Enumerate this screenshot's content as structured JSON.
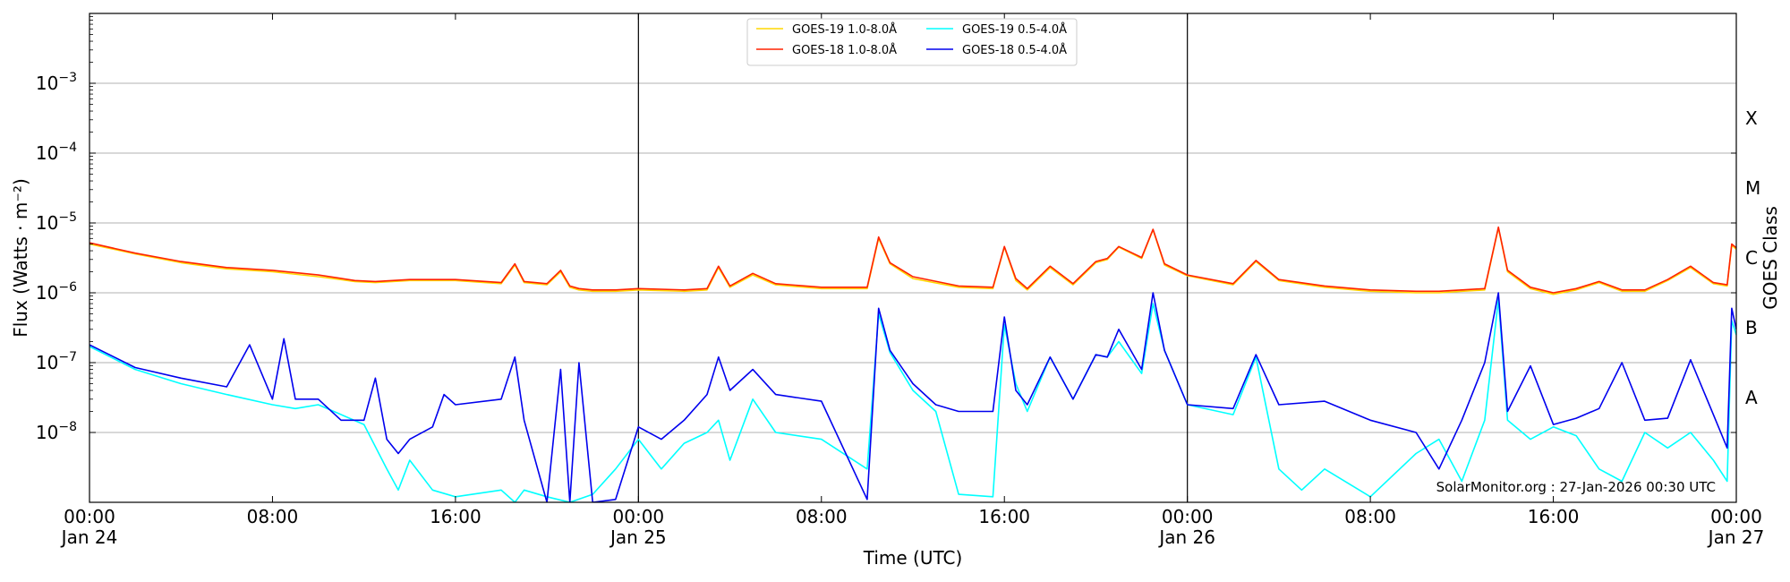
{
  "chart_data": {
    "type": "line",
    "xlabel": "Time (UTC)",
    "ylabel": "Flux (Watts · m⁻²)",
    "y2label": "GOES Class",
    "credit": "SolarMonitor.org : 27-Jan-2026 00:30 UTC",
    "x_range_hours": [
      0,
      72
    ],
    "ylim": [
      1e-09,
      0.01
    ],
    "yscale": "log",
    "grid": "horizontal",
    "legend_position": "top-center",
    "x_ticks": [
      {
        "h": 0,
        "label": "00:00",
        "date": "Jan 24"
      },
      {
        "h": 8,
        "label": "08:00",
        "date": ""
      },
      {
        "h": 16,
        "label": "16:00",
        "date": ""
      },
      {
        "h": 24,
        "label": "00:00",
        "date": "Jan 25"
      },
      {
        "h": 32,
        "label": "08:00",
        "date": ""
      },
      {
        "h": 40,
        "label": "16:00",
        "date": ""
      },
      {
        "h": 48,
        "label": "00:00",
        "date": "Jan 26"
      },
      {
        "h": 56,
        "label": "08:00",
        "date": ""
      },
      {
        "h": 64,
        "label": "16:00",
        "date": ""
      },
      {
        "h": 72,
        "label": "00:00",
        "date": "Jan 27"
      }
    ],
    "y_ticks": [
      {
        "exp": -3,
        "label": "10",
        "sup": "−3"
      },
      {
        "exp": -4,
        "label": "10",
        "sup": "−4"
      },
      {
        "exp": -5,
        "label": "10",
        "sup": "−5"
      },
      {
        "exp": -6,
        "label": "10",
        "sup": "−6"
      },
      {
        "exp": -7,
        "label": "10",
        "sup": "−7"
      },
      {
        "exp": -8,
        "label": "10",
        "sup": "−8"
      }
    ],
    "goes_classes": [
      {
        "label": "X",
        "exp": -3.5
      },
      {
        "label": "M",
        "exp": -4.5
      },
      {
        "label": "C",
        "exp": -5.5
      },
      {
        "label": "B",
        "exp": -6.5
      },
      {
        "label": "A",
        "exp": -7.5
      }
    ],
    "day_boundaries_hours": [
      24,
      48
    ],
    "series": [
      {
        "name": "GOES-19 1.0-8.0Å",
        "color": "#ffd700",
        "x": [
          0,
          2,
          4,
          6,
          8,
          10,
          11.6,
          12.5,
          14,
          16,
          18,
          18.6,
          19,
          20,
          20.6,
          21,
          21.4,
          22,
          23,
          24,
          26,
          27,
          27.5,
          28,
          29,
          30,
          32,
          34,
          34.5,
          35,
          36,
          38,
          39.5,
          40,
          40.5,
          41,
          42,
          43,
          44,
          44.5,
          45,
          46,
          46.5,
          47,
          48,
          50,
          51,
          52,
          54,
          56,
          58,
          59,
          60,
          61,
          61.6,
          62,
          63,
          64,
          65,
          66,
          67,
          68,
          69,
          70,
          71,
          71.6,
          71.8,
          72
        ],
        "values": [
          5e-06,
          3.6e-06,
          2.7e-06,
          2.2e-06,
          2e-06,
          1.7e-06,
          1.45e-06,
          1.4e-06,
          1.5e-06,
          1.5e-06,
          1.35e-06,
          2.5e-06,
          1.4e-06,
          1.3e-06,
          2e-06,
          1.2e-06,
          1.1e-06,
          1.05e-06,
          1.05e-06,
          1.1e-06,
          1.05e-06,
          1.1e-06,
          2.3e-06,
          1.2e-06,
          1.8e-06,
          1.3e-06,
          1.15e-06,
          1.15e-06,
          6e-06,
          2.6e-06,
          1.6e-06,
          1.2e-06,
          1.15e-06,
          4.5e-06,
          1.5e-06,
          1.1e-06,
          2.3e-06,
          1.3e-06,
          2.7e-06,
          3e-06,
          4.5e-06,
          3.1e-06,
          8e-06,
          2.5e-06,
          1.75e-06,
          1.3e-06,
          2.8e-06,
          1.5e-06,
          1.2e-06,
          1.05e-06,
          1e-06,
          1e-06,
          1.05e-06,
          1.1e-06,
          8.5e-06,
          2e-06,
          1.15e-06,
          9.5e-07,
          1.1e-06,
          1.4e-06,
          1.05e-06,
          1.05e-06,
          1.5e-06,
          2.3e-06,
          1.35e-06,
          1.25e-06,
          4.8e-06,
          4.2e-06
        ]
      },
      {
        "name": "GOES-18 1.0-8.0Å",
        "color": "#ff2200",
        "x": [
          0,
          2,
          4,
          6,
          8,
          10,
          11.6,
          12.5,
          14,
          16,
          18,
          18.6,
          19,
          20,
          20.6,
          21,
          21.4,
          22,
          23,
          24,
          26,
          27,
          27.5,
          28,
          29,
          30,
          32,
          34,
          34.5,
          35,
          36,
          38,
          39.5,
          40,
          40.5,
          41,
          42,
          43,
          44,
          44.5,
          45,
          46,
          46.5,
          47,
          48,
          50,
          51,
          52,
          54,
          56,
          58,
          59,
          60,
          61,
          61.6,
          62,
          63,
          64,
          65,
          66,
          67,
          68,
          69,
          70,
          71,
          71.6,
          71.8,
          72
        ],
        "values": [
          5.2e-06,
          3.7e-06,
          2.8e-06,
          2.3e-06,
          2.1e-06,
          1.8e-06,
          1.5e-06,
          1.45e-06,
          1.55e-06,
          1.55e-06,
          1.4e-06,
          2.6e-06,
          1.45e-06,
          1.35e-06,
          2.1e-06,
          1.25e-06,
          1.15e-06,
          1.1e-06,
          1.1e-06,
          1.15e-06,
          1.1e-06,
          1.15e-06,
          2.4e-06,
          1.25e-06,
          1.9e-06,
          1.35e-06,
          1.2e-06,
          1.2e-06,
          6.3e-06,
          2.7e-06,
          1.7e-06,
          1.25e-06,
          1.2e-06,
          4.6e-06,
          1.6e-06,
          1.15e-06,
          2.4e-06,
          1.35e-06,
          2.8e-06,
          3.1e-06,
          4.6e-06,
          3.2e-06,
          8.1e-06,
          2.6e-06,
          1.8e-06,
          1.35e-06,
          2.9e-06,
          1.55e-06,
          1.25e-06,
          1.1e-06,
          1.05e-06,
          1.05e-06,
          1.1e-06,
          1.15e-06,
          8.7e-06,
          2.1e-06,
          1.2e-06,
          1e-06,
          1.15e-06,
          1.45e-06,
          1.1e-06,
          1.1e-06,
          1.55e-06,
          2.4e-06,
          1.4e-06,
          1.3e-06,
          5e-06,
          4.4e-06
        ]
      },
      {
        "name": "GOES-19 0.5-4.0Å",
        "color": "#00ffff",
        "x": [
          0,
          2,
          4,
          6,
          8,
          9,
          10,
          12,
          13,
          13.5,
          14,
          15,
          16,
          18,
          18.6,
          19,
          20,
          21,
          22,
          23,
          24,
          25,
          26,
          27,
          27.5,
          28,
          29,
          30,
          32,
          34,
          34.5,
          35,
          36,
          37,
          38,
          39.5,
          40,
          40.5,
          41,
          42,
          43,
          44,
          44.5,
          45,
          46,
          46.5,
          47,
          48,
          50,
          51,
          52,
          53,
          54,
          56,
          58,
          59,
          60,
          61,
          61.6,
          62,
          63,
          64,
          65,
          66,
          67,
          68,
          69,
          70,
          71,
          71.6,
          71.8,
          72
        ],
        "values": [
          1.7e-07,
          8e-08,
          5e-08,
          3.5e-08,
          2.5e-08,
          2.2e-08,
          2.5e-08,
          1.3e-08,
          3e-09,
          1.5e-09,
          4e-09,
          1.5e-09,
          1.2e-09,
          1.5e-09,
          1e-09,
          1.5e-09,
          1.2e-09,
          1e-09,
          1.3e-09,
          3e-09,
          8e-09,
          3e-09,
          7e-09,
          1e-08,
          1.5e-08,
          4e-09,
          3e-08,
          1e-08,
          8e-09,
          3e-09,
          5e-07,
          1.4e-07,
          4e-08,
          2e-08,
          1.3e-09,
          1.2e-09,
          3.5e-07,
          5e-08,
          2e-08,
          1.2e-07,
          3e-08,
          1.3e-07,
          1.2e-07,
          2e-07,
          7e-08,
          7e-07,
          1.5e-07,
          2.5e-08,
          1.8e-08,
          1.2e-07,
          3e-09,
          1.5e-09,
          3e-09,
          1.2e-09,
          5e-09,
          8e-09,
          2e-09,
          1.5e-08,
          8e-07,
          1.5e-08,
          8e-09,
          1.2e-08,
          9e-09,
          3e-09,
          2e-09,
          1e-08,
          6e-09,
          1e-08,
          4e-09,
          2e-09,
          4e-07,
          2.5e-07
        ]
      },
      {
        "name": "GOES-18 0.5-4.0Å",
        "color": "#0000ee",
        "x": [
          0,
          2,
          4,
          6,
          7,
          8,
          8.5,
          9,
          10,
          11,
          12,
          12.5,
          13,
          13.5,
          14,
          15,
          15.5,
          16,
          18,
          18.6,
          19,
          20,
          20.6,
          21,
          21.4,
          22,
          23,
          24,
          25,
          26,
          27,
          27.5,
          28,
          29,
          30,
          32,
          34,
          34.5,
          35,
          36,
          37,
          38,
          39.5,
          40,
          40.5,
          41,
          42,
          43,
          44,
          44.5,
          45,
          46,
          46.5,
          47,
          48,
          50,
          51,
          52,
          54,
          56,
          58,
          59,
          60,
          61,
          61.6,
          62,
          63,
          64,
          65,
          66,
          67,
          68,
          69,
          70,
          71,
          71.6,
          71.8,
          72
        ],
        "values": [
          1.8e-07,
          8.5e-08,
          6e-08,
          4.5e-08,
          1.8e-07,
          3e-08,
          2.2e-07,
          3e-08,
          3e-08,
          1.5e-08,
          1.5e-08,
          6e-08,
          8e-09,
          5e-09,
          8e-09,
          1.2e-08,
          3.5e-08,
          2.5e-08,
          3e-08,
          1.2e-07,
          1.5e-08,
          1e-09,
          8e-08,
          1e-09,
          1e-07,
          1e-09,
          1.1e-09,
          1.2e-08,
          8e-09,
          1.5e-08,
          3.5e-08,
          1.2e-07,
          4e-08,
          8e-08,
          3.5e-08,
          2.8e-08,
          1.1e-09,
          6e-07,
          1.5e-07,
          5e-08,
          2.5e-08,
          2e-08,
          2e-08,
          4.5e-07,
          4e-08,
          2.5e-08,
          1.2e-07,
          3e-08,
          1.3e-07,
          1.2e-07,
          3e-07,
          8e-08,
          1e-06,
          1.5e-07,
          2.5e-08,
          2.2e-08,
          1.3e-07,
          2.5e-08,
          2.8e-08,
          1.5e-08,
          1e-08,
          3e-09,
          1.5e-08,
          1e-07,
          1e-06,
          2e-08,
          9e-08,
          1.3e-08,
          1.6e-08,
          2.2e-08,
          1e-07,
          1.5e-08,
          1.6e-08,
          1.1e-07,
          1.8e-08,
          6e-09,
          6e-07,
          3e-07
        ]
      }
    ]
  }
}
